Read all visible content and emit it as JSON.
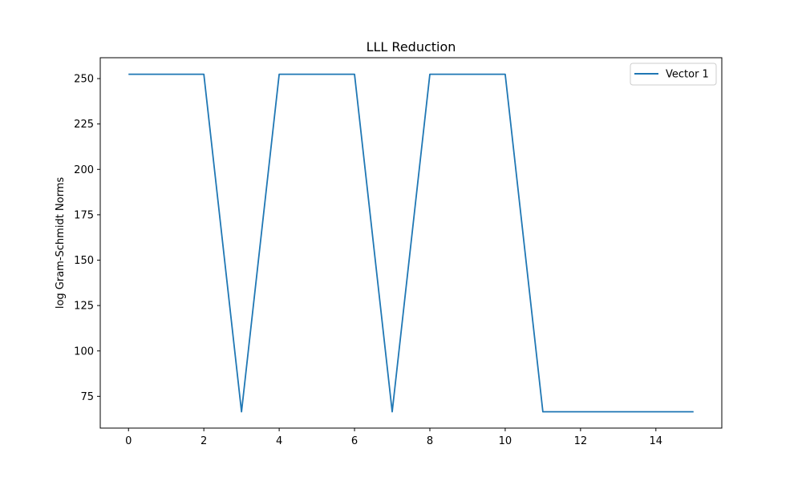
{
  "chart_data": {
    "type": "line",
    "title": "LLL Reduction",
    "xlabel": "",
    "ylabel": "log Gram-Schmidt Norms",
    "xlim": [
      -0.75,
      15.75
    ],
    "ylim": [
      57.5,
      261.5
    ],
    "xticks": [
      0,
      2,
      4,
      6,
      8,
      10,
      12,
      14
    ],
    "yticks": [
      75,
      100,
      125,
      150,
      175,
      200,
      225,
      250
    ],
    "grid": false,
    "legend_position": "top-right",
    "series": [
      {
        "name": "Vector 1",
        "color": "#1f77b4",
        "x": [
          0,
          1,
          2,
          3,
          4,
          5,
          6,
          7,
          8,
          9,
          10,
          11,
          12,
          13,
          14,
          15
        ],
        "values": [
          252.4,
          252.4,
          252.4,
          66.5,
          252.4,
          252.4,
          252.4,
          66.5,
          252.4,
          252.4,
          252.4,
          66.5,
          66.5,
          66.5,
          66.5,
          66.5
        ]
      }
    ]
  }
}
